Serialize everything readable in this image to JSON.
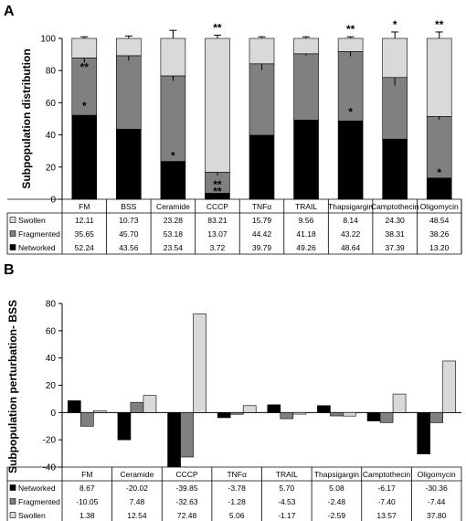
{
  "panel_a": {
    "letter": "A",
    "ylabel": "Subpopulation distribution",
    "ticks": [
      "0",
      "20",
      "40",
      "60",
      "80",
      "100"
    ],
    "categories": [
      "FM",
      "BSS",
      "Ceramide",
      "CCCP",
      "TNFα",
      "TRAIL",
      "Thapsigargin",
      "Camptothecin",
      "Oligomycin"
    ],
    "rows": [
      {
        "label": "Swollen",
        "values": [
          "12.11",
          "10.73",
          "23.28",
          "83.21",
          "15.79",
          "9.56",
          "8.14",
          "24.30",
          "48.54"
        ]
      },
      {
        "label": "Fragmented",
        "values": [
          "35.65",
          "45.70",
          "53.18",
          "13.07",
          "44.42",
          "41.18",
          "43.22",
          "38.31",
          "38.26"
        ]
      },
      {
        "label": "Networked",
        "values": [
          "52.24",
          "43.56",
          "23.54",
          "3.72",
          "39.79",
          "49.26",
          "48.64",
          "37.39",
          "13.20"
        ]
      }
    ],
    "significance": [
      {
        "category": "FM",
        "series": "Swollen",
        "mark": "**"
      },
      {
        "category": "FM",
        "series": "Networked",
        "mark": "*"
      },
      {
        "category": "Ceramide",
        "series": "Networked",
        "mark": "*"
      },
      {
        "category": "CCCP",
        "series": "Swollen",
        "mark": "**"
      },
      {
        "category": "CCCP",
        "series": "Fragmented",
        "mark": "**"
      },
      {
        "category": "CCCP",
        "series": "Networked",
        "mark": "**"
      },
      {
        "category": "Thapsigargin",
        "series": "Swollen",
        "mark": "**"
      },
      {
        "category": "Thapsigargin",
        "series": "Networked",
        "mark": "*"
      },
      {
        "category": "Camptothecin",
        "series": "Swollen",
        "mark": "*"
      },
      {
        "category": "Oligomycin",
        "series": "Swollen",
        "mark": "**"
      },
      {
        "category": "Oligomycin",
        "series": "Networked",
        "mark": "*"
      }
    ]
  },
  "panel_b": {
    "letter": "B",
    "ylabel": "Subpopulation perturbation- BSS",
    "ticks": [
      "-40",
      "-20",
      "0",
      "20",
      "40",
      "60",
      "80"
    ],
    "categories": [
      "FM",
      "Ceramide",
      "CCCP",
      "TNFα",
      "TRAIL",
      "Thapsigargin",
      "Camptothecin",
      "Oligomycin"
    ],
    "rows": [
      {
        "label": "Networked",
        "values": [
          "8.67",
          "-20.02",
          "-39.85",
          "-3.78",
          "5.70",
          "5.08",
          "-6.17",
          "-30.36"
        ]
      },
      {
        "label": "Fragmented",
        "values": [
          "-10.05",
          "7.48",
          "-32.63",
          "-1.28",
          "-4.53",
          "-2.48",
          "-7.40",
          "-7.44"
        ]
      },
      {
        "label": "Swollen",
        "values": [
          "1.38",
          "12.54",
          "72.48",
          "5.06",
          "-1.17",
          "-2.59",
          "13.57",
          "37.80"
        ]
      }
    ]
  },
  "chart_data": [
    {
      "type": "bar",
      "stacked": true,
      "categories": [
        "FM",
        "BSS",
        "Ceramide",
        "CCCP",
        "TNFα",
        "TRAIL",
        "Thapsigargin",
        "Camptothecin",
        "Oligomycin"
      ],
      "series": [
        {
          "name": "Networked",
          "color": "#000000",
          "values": [
            52.24,
            43.56,
            23.54,
            3.72,
            39.79,
            49.26,
            48.64,
            37.39,
            13.2
          ],
          "errors": [
            4,
            4,
            3,
            1,
            6,
            1,
            4,
            4,
            2
          ]
        },
        {
          "name": "Fragmented",
          "color": "#808080",
          "values": [
            35.65,
            45.7,
            53.18,
            13.07,
            44.42,
            41.18,
            43.22,
            38.31,
            38.26
          ],
          "errors": [
            3,
            3,
            3,
            2,
            4,
            1,
            3,
            5,
            2
          ]
        },
        {
          "name": "Swollen",
          "color": "#d9d9d9",
          "values": [
            12.11,
            10.73,
            23.28,
            83.21,
            15.79,
            9.56,
            8.14,
            24.3,
            48.54
          ],
          "errors": [
            1,
            1.5,
            5,
            2,
            1,
            1,
            1,
            4,
            4
          ]
        }
      ],
      "ylabel": "Subpopulation distribution",
      "ylim": [
        0,
        100
      ],
      "grid": false,
      "legend": "table below"
    },
    {
      "type": "bar",
      "stacked": false,
      "categories": [
        "FM",
        "Ceramide",
        "CCCP",
        "TNFα",
        "TRAIL",
        "Thapsigargin",
        "Camptothecin",
        "Oligomycin"
      ],
      "series": [
        {
          "name": "Networked",
          "color": "#000000",
          "values": [
            8.67,
            -20.02,
            -39.85,
            -3.78,
            5.7,
            5.08,
            -6.17,
            -30.36
          ]
        },
        {
          "name": "Fragmented",
          "color": "#808080",
          "values": [
            -10.05,
            7.48,
            -32.63,
            -1.28,
            -4.53,
            -2.48,
            -7.4,
            -7.44
          ]
        },
        {
          "name": "Swollen",
          "color": "#d9d9d9",
          "values": [
            1.38,
            12.54,
            72.48,
            5.06,
            -1.17,
            -2.59,
            13.57,
            37.8
          ]
        }
      ],
      "ylabel": "Subpopulation perturbation- BSS",
      "ylim": [
        -40,
        80
      ],
      "grid": false,
      "legend": "table below"
    }
  ]
}
